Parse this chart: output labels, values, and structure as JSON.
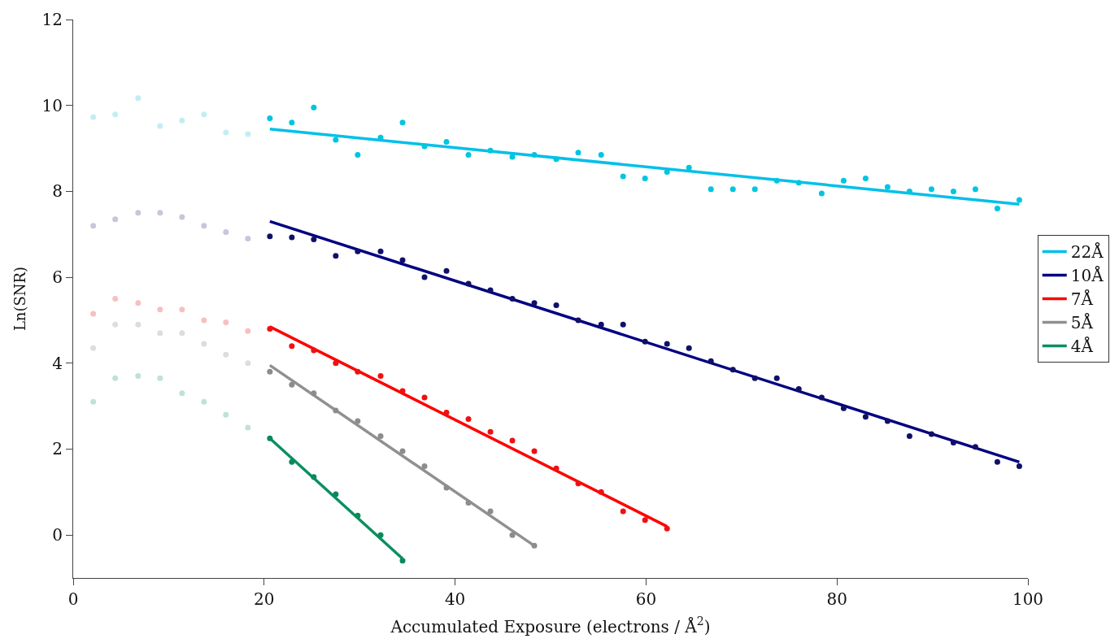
{
  "chart_data": {
    "type": "scatter",
    "xlabel": "Accumulated Exposure (electrons / Å$^{2}$)",
    "ylabel": "Ln(SNR)",
    "xlim": [
      0,
      100
    ],
    "xticks": [
      0,
      20,
      40,
      60,
      80,
      100
    ],
    "ylim": [
      -1,
      12
    ],
    "yticks": [
      0,
      2,
      4,
      6,
      8,
      10,
      12
    ],
    "legend": "right",
    "marker": "circle",
    "series": [
      {
        "color": "#c4ecf5",
        "x": [
          2.1,
          4.4,
          6.8,
          9.1,
          11.4,
          13.7,
          16.0,
          18.3
        ],
        "values": [
          9.73,
          9.79,
          10.17,
          9.52,
          9.65,
          9.79,
          9.37,
          9.33
        ]
      },
      {
        "color": "#00c5e0",
        "x": [
          20.6,
          22.9,
          25.2,
          27.5,
          29.8,
          32.2,
          34.5,
          36.8,
          39.1,
          41.4,
          43.7,
          46.0,
          48.3,
          50.6,
          52.9,
          55.3,
          57.6,
          59.9,
          62.2,
          64.5,
          66.8,
          69.1,
          71.4,
          73.7,
          76.0,
          78.4,
          80.7,
          83.0,
          85.3,
          87.6,
          89.9,
          92.2,
          94.5,
          96.8,
          99.1
        ],
        "values": [
          9.7,
          9.6,
          9.95,
          9.2,
          8.85,
          9.25,
          9.6,
          9.05,
          9.15,
          8.85,
          8.95,
          8.8,
          8.85,
          8.75,
          8.9,
          8.85,
          8.35,
          8.3,
          8.45,
          8.55,
          8.05,
          8.05,
          8.05,
          8.25,
          8.2,
          7.95,
          8.25,
          8.3,
          8.1,
          8.0,
          8.05,
          8.0,
          8.05,
          7.6,
          7.8
        ]
      },
      {
        "type": "line",
        "marker": "none",
        "name": "22Å",
        "color": "#00c0e8",
        "x": [
          20.6,
          99.1
        ],
        "values": [
          9.45,
          7.7
        ]
      },
      {
        "color": "#c6c6dd",
        "x": [
          2.1,
          4.4,
          6.8,
          9.1,
          11.4,
          13.7,
          16.0,
          18.3
        ],
        "values": [
          7.2,
          7.35,
          7.5,
          7.5,
          7.4,
          7.2,
          7.05,
          6.9
        ]
      },
      {
        "color": "#10106a",
        "x": [
          20.6,
          22.9,
          25.2,
          27.5,
          29.8,
          32.2,
          34.5,
          36.8,
          39.1,
          41.4,
          43.7,
          46.0,
          48.3,
          50.6,
          52.9,
          55.3,
          57.6,
          59.9,
          62.2,
          64.5,
          66.8,
          69.1,
          71.4,
          73.7,
          76.0,
          78.4,
          80.7,
          83.0,
          85.3,
          87.6,
          89.9,
          92.2,
          94.5,
          96.8,
          99.1
        ],
        "values": [
          6.95,
          6.93,
          6.88,
          6.5,
          6.6,
          6.6,
          6.4,
          6.0,
          6.15,
          5.85,
          5.7,
          5.5,
          5.4,
          5.35,
          5.0,
          4.9,
          4.9,
          4.5,
          4.45,
          4.35,
          4.05,
          3.85,
          3.65,
          3.65,
          3.4,
          3.2,
          2.95,
          2.75,
          2.65,
          2.3,
          2.35,
          2.15,
          2.05,
          1.7,
          1.6
        ]
      },
      {
        "type": "line",
        "marker": "none",
        "name": "10Å",
        "color": "#000080",
        "x": [
          20.6,
          99.1
        ],
        "values": [
          7.3,
          1.7
        ]
      },
      {
        "color": "#f7c0c0",
        "x": [
          2.1,
          4.4,
          6.8,
          9.1,
          11.4,
          13.7,
          16.0,
          18.3
        ],
        "values": [
          5.15,
          5.5,
          5.4,
          5.25,
          5.25,
          5.0,
          4.95,
          4.75
        ]
      },
      {
        "color": "#f01010",
        "x": [
          20.6,
          22.9,
          25.2,
          27.5,
          29.8,
          32.2,
          34.5,
          36.8,
          39.1,
          41.4,
          43.7,
          46.0,
          48.3,
          50.6,
          52.9,
          55.3,
          57.6,
          59.9,
          62.2
        ],
        "values": [
          4.8,
          4.4,
          4.3,
          4.0,
          3.8,
          3.7,
          3.35,
          3.2,
          2.85,
          2.7,
          2.4,
          2.2,
          1.95,
          1.55,
          1.2,
          1.0,
          0.55,
          0.35,
          0.15
        ]
      },
      {
        "type": "line",
        "marker": "none",
        "name": "7Å",
        "color": "#ff0000",
        "x": [
          20.6,
          62.2
        ],
        "values": [
          4.85,
          0.2
        ]
      },
      {
        "color": "#dddddd",
        "x": [
          2.1,
          4.4,
          6.8,
          9.1,
          11.4,
          13.7,
          16.0,
          18.3
        ],
        "values": [
          4.35,
          4.9,
          4.9,
          4.7,
          4.7,
          4.45,
          4.2,
          4.0
        ]
      },
      {
        "color": "#8c8c8c",
        "x": [
          20.6,
          22.9,
          25.2,
          27.5,
          29.8,
          32.2,
          34.5,
          36.8,
          39.1,
          41.4,
          43.7,
          46.0,
          48.3
        ],
        "values": [
          3.8,
          3.5,
          3.3,
          2.9,
          2.65,
          2.3,
          1.95,
          1.6,
          1.1,
          0.75,
          0.55,
          0.0,
          -0.25
        ]
      },
      {
        "type": "line",
        "marker": "none",
        "name": "5Å",
        "color": "#909090",
        "x": [
          20.6,
          48.3
        ],
        "values": [
          3.95,
          -0.25
        ]
      },
      {
        "color": "#c0e2d6",
        "x": [
          2.1,
          4.4,
          6.8,
          9.1,
          11.4,
          13.7,
          16.0,
          18.3
        ],
        "values": [
          3.1,
          3.65,
          3.7,
          3.65,
          3.3,
          3.1,
          2.8,
          2.5
        ]
      },
      {
        "color": "#0a8a5a",
        "x": [
          20.6,
          22.9,
          25.2,
          27.5,
          29.8,
          32.2,
          34.5
        ],
        "values": [
          2.25,
          1.7,
          1.35,
          0.95,
          0.45,
          0.0,
          -0.6
        ]
      },
      {
        "type": "line",
        "marker": "none",
        "name": "4Å",
        "color": "#0a8f5f",
        "x": [
          20.6,
          34.5
        ],
        "values": [
          2.25,
          -0.55
        ]
      }
    ]
  }
}
